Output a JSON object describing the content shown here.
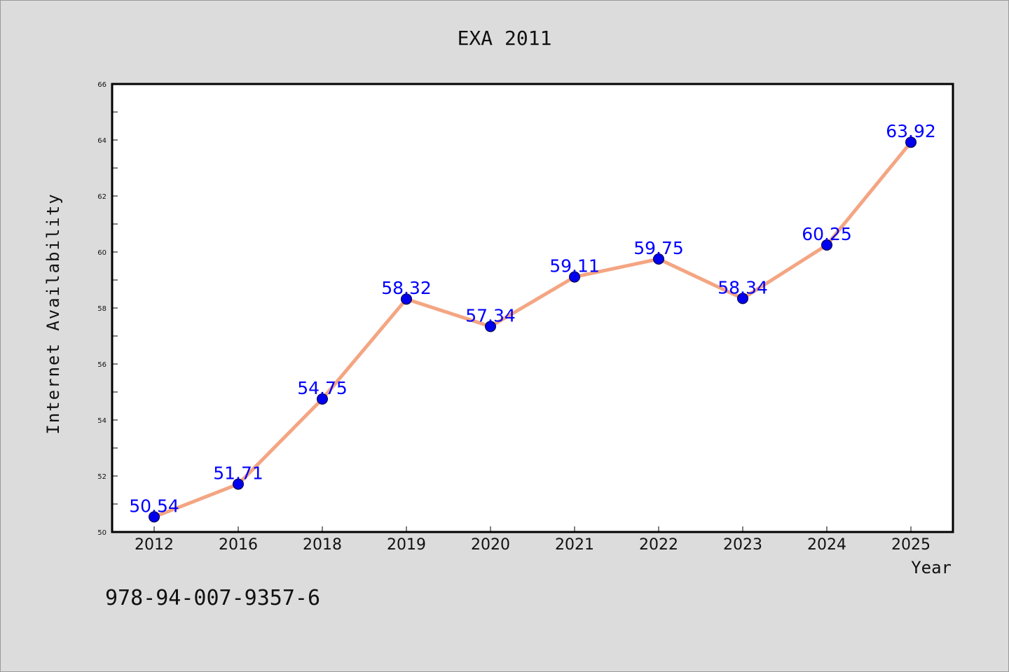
{
  "chart_data": {
    "type": "line",
    "title": "EXA 2011",
    "xlabel": "Year",
    "ylabel": "Internet Availability",
    "categories": [
      "2012",
      "2016",
      "2018",
      "2019",
      "2020",
      "2021",
      "2022",
      "2023",
      "2024",
      "2025"
    ],
    "series": [
      {
        "values": [
          50.54,
          51.71,
          54.75,
          58.32,
          57.34,
          59.11,
          59.75,
          58.34,
          60.25,
          63.92
        ],
        "line_color": "#f4a582",
        "marker_color": "#0000ee"
      }
    ],
    "data_labels": [
      "50.54",
      "51.71",
      "54.75",
      "58.32",
      "57.34",
      "59.11",
      "59.75",
      "58.34",
      "60.25",
      "63.92"
    ],
    "ylim": [
      50,
      66
    ],
    "yticks": [
      50,
      52,
      54,
      56,
      58,
      60,
      62,
      64,
      66
    ],
    "ytick_labels": [
      "50",
      "52",
      "54",
      "56",
      "58",
      "60",
      "62",
      "64",
      "66"
    ],
    "grid": false,
    "label_color": "#0000ff"
  },
  "footnote": "978-94-007-9357-6"
}
